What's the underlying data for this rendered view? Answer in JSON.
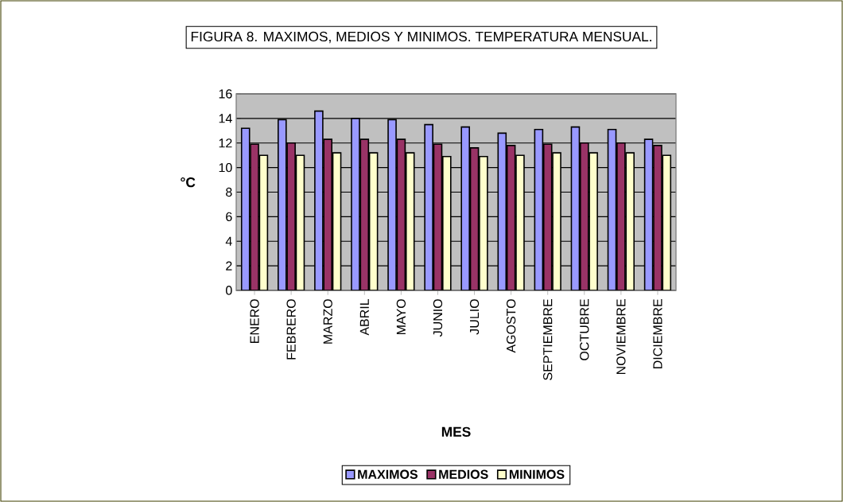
{
  "chart_data": {
    "type": "bar",
    "title": "FIGURA 8. MAXIMOS, MEDIOS Y MINIMOS. TEMPERATURA MENSUAL.",
    "xlabel": "MES",
    "ylabel": "°C",
    "categories": [
      "ENERO",
      "FEBRERO",
      "MARZO",
      "ABRIL",
      "MAYO",
      "JUNIO",
      "JULIO",
      "AGOSTO",
      "SEPTIEMBRE",
      "OCTUBRE",
      "NOVIEMBRE",
      "DICIEMBRE"
    ],
    "series": [
      {
        "name": "MAXIMOS",
        "color": "#9999ff",
        "values": [
          13.2,
          13.9,
          14.6,
          14.0,
          13.9,
          13.5,
          13.3,
          12.8,
          13.1,
          13.3,
          13.1,
          12.3
        ]
      },
      {
        "name": "MEDIOS",
        "color": "#993366",
        "values": [
          11.9,
          12.0,
          12.3,
          12.3,
          12.3,
          11.9,
          11.6,
          11.8,
          11.9,
          12.0,
          12.0,
          11.8
        ]
      },
      {
        "name": "MINIMOS",
        "color": "#ffffcc",
        "values": [
          11.0,
          11.0,
          11.2,
          11.2,
          11.2,
          10.9,
          10.9,
          11.0,
          11.2,
          11.2,
          11.2,
          11.0
        ]
      }
    ],
    "ylim": [
      0,
      16
    ],
    "yticks": [
      0,
      2,
      4,
      6,
      8,
      10,
      12,
      14,
      16
    ],
    "grid": "y",
    "legend": "bottom"
  }
}
